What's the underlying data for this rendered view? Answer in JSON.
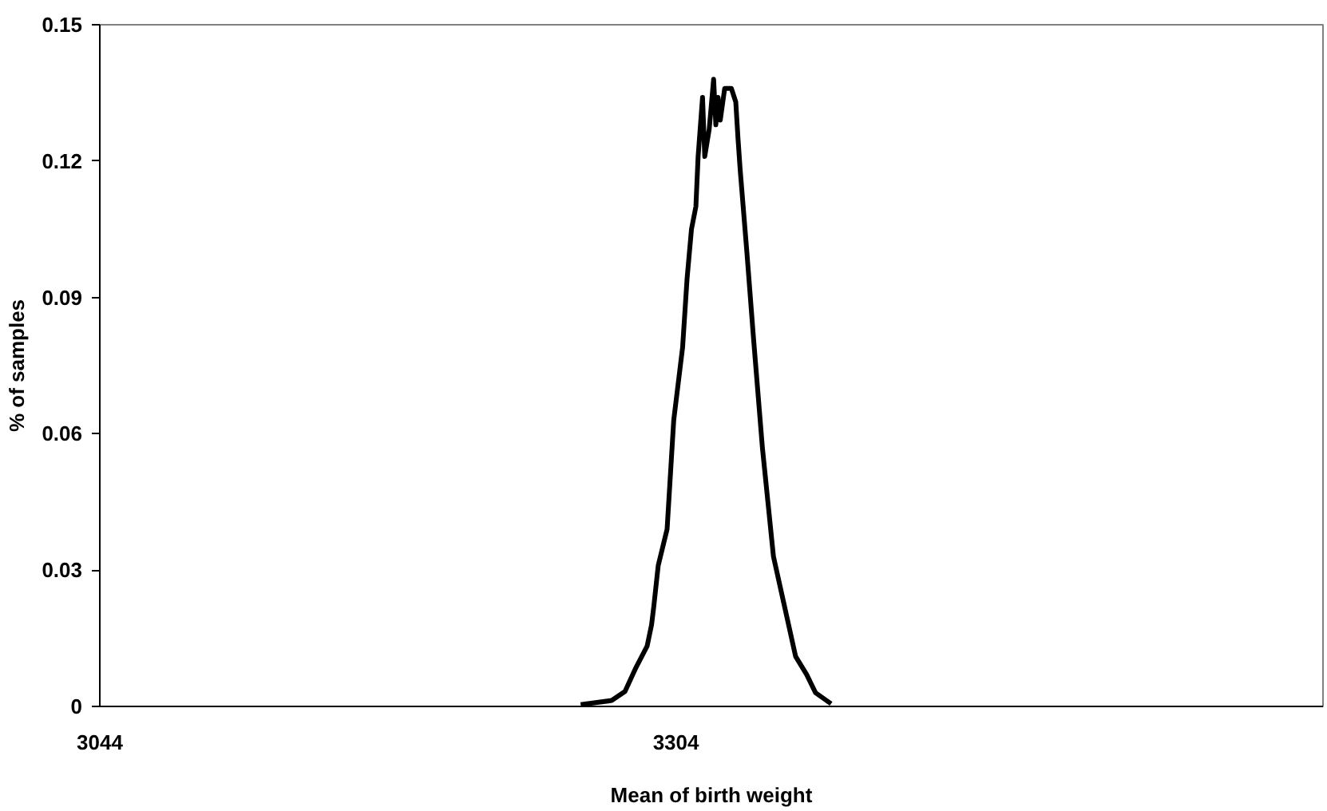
{
  "chart_data": {
    "type": "line",
    "xlabel": "Mean of birth weight",
    "ylabel": "% of samples",
    "x": [
      3261,
      3275,
      3281,
      3286,
      3291,
      3293,
      3294,
      3296,
      3300,
      3303,
      3307,
      3309,
      3311,
      3313,
      3314,
      3316,
      3317,
      3319,
      3321,
      3322,
      3323,
      3324,
      3326,
      3329,
      3331,
      3332,
      3333,
      3336,
      3339,
      3343,
      3348,
      3353,
      3358,
      3363,
      3367,
      3374
    ],
    "series": [
      {
        "color": "#000000",
        "values": [
          0.0004,
          0.0013,
          0.0033,
          0.0086,
          0.0133,
          0.018,
          0.022,
          0.031,
          0.039,
          0.063,
          0.079,
          0.094,
          0.105,
          0.11,
          0.121,
          0.134,
          0.121,
          0.127,
          0.138,
          0.128,
          0.134,
          0.129,
          0.136,
          0.136,
          0.133,
          0.125,
          0.118,
          0.1,
          0.081,
          0.057,
          0.033,
          0.022,
          0.011,
          0.007,
          0.003,
          0.0006
        ]
      }
    ],
    "xlim": [
      3044,
      3596
    ],
    "xticks": [
      3044,
      3304
    ],
    "ylim": [
      0,
      0.15
    ],
    "yticks": [
      0,
      0.03,
      0.06,
      0.09,
      0.12,
      0.15
    ],
    "grid": false,
    "marker": "none",
    "line_style": "solid"
  }
}
